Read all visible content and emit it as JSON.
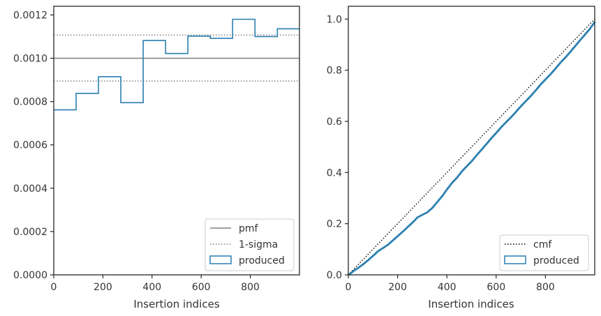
{
  "chart_data": [
    {
      "type": "line",
      "subtype": "step-histogram",
      "title": "",
      "xlabel": "Insertion indices",
      "ylabel": "",
      "xlim": [
        0,
        1000
      ],
      "ylim": [
        0,
        0.00124
      ],
      "xticks": [
        0,
        200,
        400,
        600,
        800
      ],
      "xtick_labels": [
        "0",
        "200",
        "400",
        "600",
        "800"
      ],
      "yticks": [
        0,
        0.0002,
        0.0004,
        0.0006,
        0.0008,
        0.001,
        0.0012
      ],
      "ytick_labels": [
        "0.0000",
        "0.0002",
        "0.0004",
        "0.0006",
        "0.0008",
        "0.0010",
        "0.0012"
      ],
      "grid": false,
      "legend_position": "bottom-right",
      "reference_lines": [
        {
          "name": "pmf",
          "y": 0.001,
          "style": "solid",
          "color": "#808080"
        },
        {
          "name": "1-sigma",
          "y": 0.001107,
          "style": "dotted",
          "color": "#808080"
        },
        {
          "name": "1-sigma",
          "y": 0.000895,
          "style": "dotted",
          "color": "#808080"
        }
      ],
      "series": [
        {
          "name": "produced",
          "color": "#2a7fb0",
          "bin_edges": [
            0,
            91,
            182,
            273,
            364,
            455,
            546,
            637,
            728,
            819,
            910,
            1000
          ],
          "values": [
            0.000762,
            0.000838,
            0.000915,
            0.000795,
            0.001082,
            0.001022,
            0.001102,
            0.001092,
            0.00118,
            0.0011,
            0.001136
          ]
        }
      ],
      "legend": [
        "pmf",
        "1-sigma",
        "produced"
      ]
    },
    {
      "type": "line",
      "title": "",
      "xlabel": "Insertion indices",
      "ylabel": "",
      "xlim": [
        0,
        1000
      ],
      "ylim": [
        0,
        1.05
      ],
      "xticks": [
        0,
        200,
        400,
        600,
        800
      ],
      "xtick_labels": [
        "0",
        "200",
        "400",
        "600",
        "800"
      ],
      "yticks": [
        0,
        0.2,
        0.4,
        0.6,
        0.8,
        1.0
      ],
      "ytick_labels": [
        "0.0",
        "0.2",
        "0.4",
        "0.6",
        "0.8",
        "1.0"
      ],
      "grid": false,
      "legend_position": "bottom-right",
      "series": [
        {
          "name": "cmf",
          "style": "dotted",
          "color": "#000000",
          "x": [
            0,
            1000
          ],
          "y": [
            0,
            1.0
          ]
        },
        {
          "name": "produced",
          "style": "step",
          "color": "#2a7fb0",
          "x": [
            0,
            20,
            40,
            60,
            80,
            100,
            120,
            140,
            160,
            180,
            200,
            230,
            260,
            280,
            300,
            320,
            340,
            360,
            380,
            400,
            420,
            440,
            460,
            480,
            500,
            520,
            540,
            560,
            580,
            600,
            620,
            640,
            660,
            680,
            700,
            720,
            740,
            760,
            780,
            800,
            820,
            840,
            860,
            880,
            900,
            920,
            940,
            960,
            980,
            1000
          ],
          "y": [
            0,
            0.015,
            0.028,
            0.042,
            0.058,
            0.075,
            0.093,
            0.105,
            0.118,
            0.135,
            0.152,
            0.178,
            0.205,
            0.225,
            0.235,
            0.245,
            0.262,
            0.285,
            0.308,
            0.335,
            0.36,
            0.38,
            0.405,
            0.425,
            0.445,
            0.468,
            0.49,
            0.512,
            0.535,
            0.556,
            0.578,
            0.598,
            0.617,
            0.638,
            0.66,
            0.68,
            0.7,
            0.722,
            0.745,
            0.765,
            0.785,
            0.807,
            0.83,
            0.85,
            0.872,
            0.895,
            0.918,
            0.94,
            0.963,
            0.99
          ]
        }
      ],
      "legend": [
        "cmf",
        "produced"
      ]
    }
  ]
}
